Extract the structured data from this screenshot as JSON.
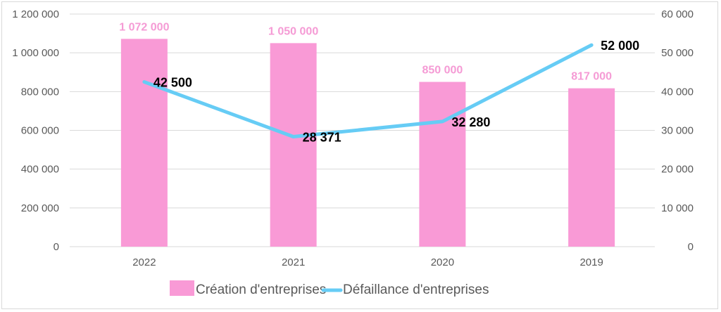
{
  "chart_data": {
    "type": "bar+line",
    "categories": [
      "2022",
      "2021",
      "2020",
      "2019"
    ],
    "series": [
      {
        "name": "Création d'entreprises",
        "type": "bar",
        "axis": "left",
        "color": "#f99ad6",
        "values": [
          1072000,
          1050000,
          850000,
          817000
        ],
        "labels": [
          "1 072 000",
          "1 050 000",
          "850 000",
          "817 000"
        ]
      },
      {
        "name": "Défaillance d'entreprises",
        "type": "line",
        "axis": "right",
        "color": "#66ccf5",
        "values": [
          42500,
          28371,
          32280,
          52000
        ],
        "labels": [
          "42 500",
          "28 371",
          "32 280",
          "52 000"
        ]
      }
    ],
    "y_left": {
      "lim": [
        0,
        1200000
      ],
      "ticks": [
        0,
        200000,
        400000,
        600000,
        800000,
        1000000,
        1200000
      ],
      "tick_labels": [
        "0",
        "200 000",
        "400 000",
        "600 000",
        "800 000",
        "1 000 000",
        "1 200 000"
      ]
    },
    "y_right": {
      "lim": [
        0,
        60000
      ],
      "ticks": [
        0,
        10000,
        20000,
        30000,
        40000,
        50000,
        60000
      ],
      "tick_labels": [
        "0",
        "10 000",
        "20 000",
        "30 000",
        "40 000",
        "50 000",
        "60 000"
      ]
    },
    "grid": true,
    "legend": "bottom"
  }
}
